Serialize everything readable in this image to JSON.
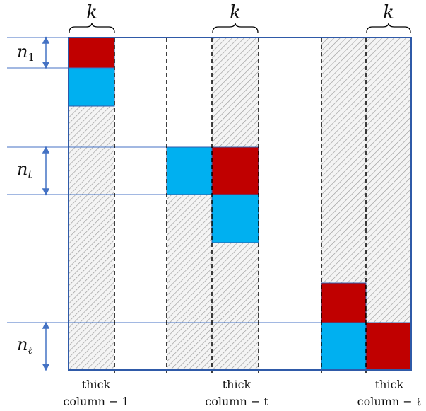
{
  "k_labels": [
    "k",
    "k",
    "k"
  ],
  "row_labels": {
    "first": {
      "base": "n",
      "sub": "1"
    },
    "middle": {
      "base": "n",
      "sub": "t"
    },
    "last": {
      "base": "n",
      "sub": "ℓ"
    }
  },
  "column_labels": [
    {
      "line1": "thick",
      "line2": "column − 1"
    },
    {
      "line1": "thick",
      "line2": "column − t"
    },
    {
      "line1": "thick",
      "line2": "column − ℓ"
    }
  ],
  "colors": {
    "red_block": "#c00000",
    "blue_block": "#00b0f0",
    "frame": "#2f5aa8",
    "guide": "#4472c4",
    "hatch": "#9a9a9a"
  }
}
